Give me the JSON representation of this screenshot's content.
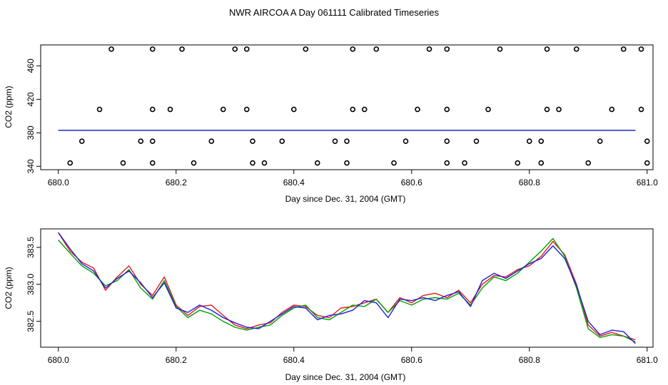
{
  "title": "NWR AIRCOA A  Day 061111  Calibrated Timeseries",
  "chart_data": [
    {
      "type": "scatter",
      "xlabel": "Day since Dec. 31, 2004 (GMT)",
      "ylabel": "CO2 (ppm)",
      "xlim": [
        679.97,
        681.01
      ],
      "ylim": [
        336,
        485
      ],
      "xticks": [
        680.0,
        680.2,
        680.4,
        680.6,
        680.8,
        681.0
      ],
      "xtick_labels": [
        "680.0",
        "680.2",
        "680.4",
        "680.6",
        "680.8",
        "681.0"
      ],
      "yticks": [
        340,
        380,
        420,
        460
      ],
      "ytick_labels": [
        "340",
        "380",
        "420",
        "460"
      ],
      "markers": {
        "color": "#000000",
        "levels": [
          {
            "y": 480,
            "x": [
              680.09,
              680.16,
              680.21,
              680.3,
              680.32,
              680.42,
              680.5,
              680.54,
              680.63,
              680.66,
              680.75,
              680.83,
              680.88,
              680.96,
              680.99
            ]
          },
          {
            "y": 408,
            "x": [
              680.07,
              680.16,
              680.19,
              680.28,
              680.32,
              680.4,
              680.5,
              680.52,
              680.61,
              680.66,
              680.73,
              680.83,
              680.85,
              680.94,
              680.99
            ]
          },
          {
            "y": 370,
            "x": [
              680.04,
              680.14,
              680.16,
              680.26,
              680.33,
              680.38,
              680.47,
              680.49,
              680.59,
              680.66,
              680.71,
              680.8,
              680.82,
              680.92,
              681.0
            ]
          },
          {
            "y": 344,
            "x": [
              680.02,
              680.11,
              680.16,
              680.23,
              680.33,
              680.35,
              680.44,
              680.49,
              680.57,
              680.66,
              680.69,
              680.78,
              680.82,
              680.9,
              681.0
            ]
          }
        ]
      },
      "series": [
        {
          "name": "red",
          "color": "#e41a1c",
          "x": [
            680.0,
            680.98
          ],
          "values": [
            383.0,
            383.0
          ]
        },
        {
          "name": "green",
          "color": "#00a000",
          "x": [
            680.0,
            680.98
          ],
          "values": [
            383.0,
            383.0
          ]
        },
        {
          "name": "blue",
          "color": "#1f1fd8",
          "x": [
            680.0,
            680.98
          ],
          "values": [
            383.0,
            383.0
          ]
        }
      ]
    },
    {
      "type": "line",
      "xlabel": "Day since Dec. 31, 2004 (GMT)",
      "ylabel": "CO2 (ppm)",
      "xlim": [
        679.97,
        681.01
      ],
      "ylim": [
        382.15,
        383.75
      ],
      "xticks": [
        680.0,
        680.2,
        680.4,
        680.6,
        680.8,
        681.0
      ],
      "xtick_labels": [
        "680.0",
        "680.2",
        "680.4",
        "680.6",
        "680.8",
        "681.0"
      ],
      "yticks": [
        382.5,
        383.0,
        383.5
      ],
      "ytick_labels": [
        "382.5",
        "383.0",
        "383.5"
      ],
      "series": [
        {
          "name": "red",
          "color": "#e41a1c",
          "x": [
            680.0,
            680.02,
            680.04,
            680.06,
            680.08,
            680.1,
            680.12,
            680.14,
            680.16,
            680.18,
            680.2,
            680.22,
            680.24,
            680.26,
            680.28,
            680.3,
            680.32,
            680.34,
            680.36,
            680.38,
            680.4,
            680.42,
            680.44,
            680.46,
            680.48,
            680.5,
            680.52,
            680.54,
            680.56,
            680.58,
            680.6,
            680.62,
            680.64,
            680.66,
            680.68,
            680.7,
            680.72,
            680.74,
            680.76,
            680.78,
            680.8,
            680.82,
            680.84,
            680.86,
            680.88,
            680.9,
            680.92,
            680.94,
            680.96,
            680.98
          ],
          "values": [
            383.7,
            383.45,
            383.3,
            383.22,
            382.92,
            383.1,
            383.25,
            383.0,
            382.85,
            383.1,
            382.72,
            382.58,
            382.7,
            382.72,
            382.58,
            382.45,
            382.4,
            382.45,
            382.48,
            382.62,
            382.72,
            382.7,
            382.58,
            382.55,
            382.68,
            382.7,
            382.75,
            382.8,
            382.62,
            382.82,
            382.75,
            382.85,
            382.88,
            382.82,
            382.92,
            382.75,
            383.0,
            383.12,
            383.1,
            383.2,
            383.25,
            383.38,
            383.58,
            383.4,
            383.0,
            382.45,
            382.3,
            382.35,
            382.3,
            382.25
          ]
        },
        {
          "name": "green",
          "color": "#00a000",
          "x": [
            680.0,
            680.02,
            680.04,
            680.06,
            680.08,
            680.1,
            680.12,
            680.14,
            680.16,
            680.18,
            680.2,
            680.22,
            680.24,
            680.26,
            680.28,
            680.3,
            680.32,
            680.34,
            680.36,
            680.38,
            680.4,
            680.42,
            680.44,
            680.46,
            680.48,
            680.5,
            680.52,
            680.54,
            680.56,
            680.58,
            680.6,
            680.62,
            680.64,
            680.66,
            680.68,
            680.7,
            680.72,
            680.74,
            680.76,
            680.78,
            680.8,
            680.82,
            680.84,
            680.86,
            680.88,
            680.9,
            680.92,
            680.94,
            680.96,
            680.98
          ],
          "values": [
            383.6,
            383.42,
            383.25,
            383.15,
            382.98,
            383.05,
            383.2,
            382.95,
            382.8,
            383.05,
            382.7,
            382.55,
            382.65,
            382.6,
            382.5,
            382.42,
            382.38,
            382.42,
            382.45,
            382.58,
            382.68,
            382.72,
            382.55,
            382.52,
            382.62,
            382.72,
            382.7,
            382.8,
            382.62,
            382.78,
            382.72,
            382.8,
            382.82,
            382.8,
            382.88,
            382.72,
            382.95,
            383.1,
            383.05,
            383.15,
            383.3,
            383.45,
            383.62,
            383.38,
            382.95,
            382.4,
            382.28,
            382.32,
            382.3,
            382.22
          ]
        },
        {
          "name": "blue",
          "color": "#1f1fd8",
          "x": [
            680.0,
            680.02,
            680.04,
            680.06,
            680.08,
            680.1,
            680.12,
            680.14,
            680.16,
            680.18,
            680.2,
            680.22,
            680.24,
            680.26,
            680.28,
            680.3,
            680.32,
            680.34,
            680.36,
            680.38,
            680.4,
            680.42,
            680.44,
            680.46,
            680.48,
            680.5,
            680.52,
            680.54,
            680.56,
            680.58,
            680.6,
            680.62,
            680.64,
            680.66,
            680.68,
            680.7,
            680.72,
            680.74,
            680.76,
            680.78,
            680.8,
            680.82,
            680.84,
            680.86,
            680.88,
            680.9,
            680.92,
            680.94,
            680.96,
            680.98
          ],
          "values": [
            383.7,
            383.48,
            383.28,
            383.18,
            382.95,
            383.08,
            383.18,
            383.02,
            382.82,
            383.02,
            382.68,
            382.62,
            382.72,
            382.65,
            382.55,
            382.48,
            382.42,
            382.4,
            382.5,
            382.6,
            382.7,
            382.68,
            382.52,
            382.58,
            382.6,
            382.65,
            382.78,
            382.75,
            382.55,
            382.8,
            382.78,
            382.82,
            382.78,
            382.85,
            382.9,
            382.7,
            383.05,
            383.15,
            383.08,
            383.18,
            383.28,
            383.35,
            383.52,
            383.35,
            382.98,
            382.5,
            382.32,
            382.38,
            382.36,
            382.2
          ]
        }
      ]
    }
  ]
}
